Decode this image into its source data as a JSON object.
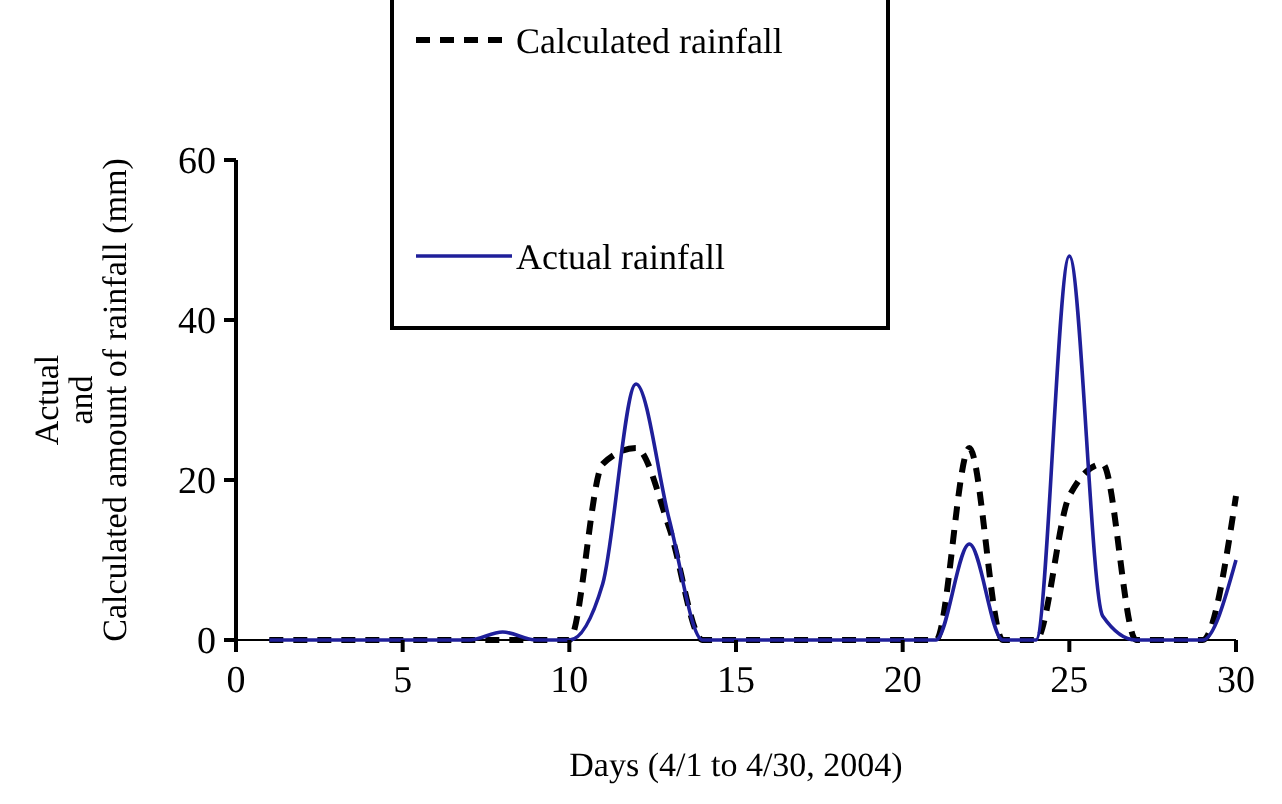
{
  "chart_data": {
    "type": "line",
    "xlabel": "Days (4/1 to 4/30, 2004)",
    "ylabel": "Actual\nand\nCalculated amount of rainfall (mm)",
    "x": [
      1,
      2,
      3,
      4,
      5,
      6,
      7,
      8,
      9,
      10,
      11,
      12,
      13,
      14,
      15,
      16,
      17,
      18,
      19,
      20,
      21,
      22,
      23,
      24,
      25,
      26,
      27,
      28,
      29,
      30
    ],
    "series": [
      {
        "name": "Calculated rainfall",
        "color": "#000000",
        "line_style": "dashed",
        "values": [
          0,
          0,
          0,
          0,
          0,
          0,
          0,
          0,
          0,
          0,
          22,
          24,
          14,
          0,
          0,
          0,
          0,
          0,
          0,
          0,
          0,
          24,
          0,
          0,
          18,
          22,
          0,
          0,
          0,
          18
        ]
      },
      {
        "name": "Actual rainfall",
        "color": "#1f1f9a",
        "line_style": "solid",
        "values": [
          0,
          0,
          0,
          0,
          0,
          0,
          0,
          1,
          0,
          0,
          7,
          32,
          15,
          0,
          0,
          0,
          0,
          0,
          0,
          0,
          0,
          12,
          0,
          0,
          48,
          3,
          0,
          0,
          0,
          10
        ]
      }
    ],
    "xlim": [
      0,
      30
    ],
    "xticks": [
      0,
      5,
      10,
      15,
      20,
      25,
      30
    ],
    "ylim": [
      0,
      60
    ],
    "yticks": [
      0,
      20,
      40,
      60
    ],
    "grid": false,
    "legend": "top",
    "marker": "none"
  }
}
